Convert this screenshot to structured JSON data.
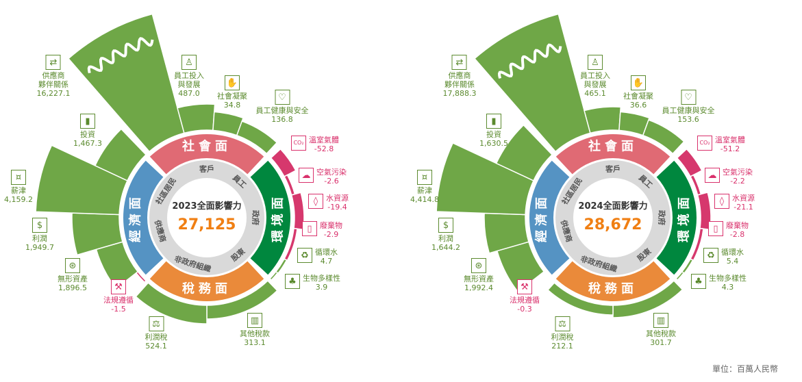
{
  "unit_label": "單位：百萬人民幣",
  "colors": {
    "positive": "#6fa747",
    "negative": "#d6386d",
    "positive_text": "#5b8a2e",
    "negative_text": "#d9306b",
    "social": "#e06a74",
    "environment": "#00873e",
    "tax": "#ea8a3a",
    "economic": "#5593c3",
    "stakeholder_ring": "#d9d9d9",
    "total_value": "#f07f13"
  },
  "indicator_icons": [
    "handshake-icon",
    "employee-growth-icon",
    "raised-hands-icon",
    "heart-pulse-icon",
    "co2-cloud-icon",
    "polluted-cloud-icon",
    "water-drop-icon",
    "trash-bin-icon",
    "recycle-water-icon",
    "tree-icon",
    "government-building-icon",
    "scales-icon",
    "gavel-icon",
    "magnifier-dollar-icon",
    "dollar-icon",
    "cash-icon",
    "bar-chart-icon"
  ],
  "chart_data": [
    {
      "type": "bar",
      "polar": true,
      "title": "2023全面影響力",
      "total": "27,125",
      "dimensions": [
        "社會面",
        "環境面",
        "稅務面",
        "經濟面"
      ],
      "stakeholders": [
        "客戶",
        "員工",
        "政府",
        "股東",
        "非政府組織",
        "供應商",
        "社區居民"
      ],
      "categories": [
        "供應商\n夥伴關係",
        "員工投入\n與發展",
        "社會凝聚",
        "員工健康與安全",
        "溫室氣體",
        "空氣污染",
        "水資源",
        "廢棄物",
        "循環水",
        "生物多樣性",
        "其他稅款",
        "利潤稅",
        "法規遵循",
        "無形資產",
        "利潤",
        "薪津",
        "投資"
      ],
      "values": [
        16227.1,
        487.0,
        34.8,
        136.8,
        -52.8,
        -2.6,
        -19.4,
        -2.9,
        4.7,
        3.9,
        313.1,
        524.1,
        -1.5,
        1896.5,
        1949.7,
        4159.2,
        1467.3
      ]
    },
    {
      "type": "bar",
      "polar": true,
      "title": "2024全面影響力",
      "total": "28,672",
      "dimensions": [
        "社會面",
        "環境面",
        "稅務面",
        "經濟面"
      ],
      "stakeholders": [
        "客戶",
        "員工",
        "政府",
        "股東",
        "非政府組織",
        "供應商",
        "社區居民"
      ],
      "categories": [
        "供應商\n夥伴關係",
        "員工投入\n與發展",
        "社會凝聚",
        "員工健康與安全",
        "溫室氣體",
        "空氣污染",
        "水資源",
        "廢棄物",
        "循環水",
        "生物多樣性",
        "其他稅款",
        "利潤稅",
        "法規遵循",
        "無形資產",
        "利潤",
        "薪津",
        "投資"
      ],
      "values": [
        17888.3,
        465.1,
        36.6,
        153.6,
        -51.2,
        -2.2,
        -21.1,
        -2.8,
        5.4,
        4.3,
        301.7,
        212.1,
        -0.3,
        1992.4,
        1644.2,
        4414.8,
        1630.5
      ]
    }
  ]
}
